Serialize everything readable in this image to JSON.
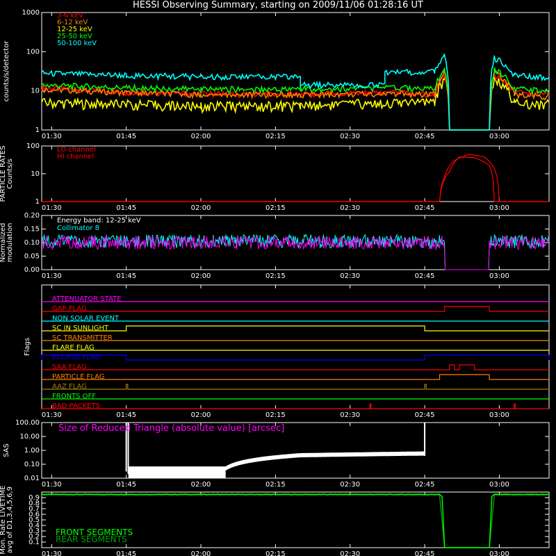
{
  "title": "HESSI Observing Summary, starting on 2009/11/06 01:28:16 UT",
  "time_ticks": [
    "01:30",
    "01:45",
    "02:00",
    "02:15",
    "02:30",
    "02:45",
    "03:00"
  ],
  "chart_data": [
    {
      "type": "line",
      "name": "count-rates",
      "ylabel": "counts/s/detector",
      "yscale": "log",
      "ylim": [
        1,
        1000
      ],
      "yticks": [
        "1",
        "10",
        "100",
        "1000"
      ],
      "series": [
        {
          "name": "3-6 keV",
          "color": "#ff0000",
          "points": [
            [
              "01:28",
              12
            ],
            [
              "01:45",
              9
            ],
            [
              "02:00",
              8.5
            ],
            [
              "02:20",
              8
            ],
            [
              "02:40",
              9
            ],
            [
              "02:47",
              8
            ],
            [
              "02:49",
              25
            ],
            [
              "02:50",
              0
            ],
            [
              "02:58",
              0
            ],
            [
              "02:59",
              25
            ],
            [
              "03:03",
              9
            ],
            [
              "03:10",
              8
            ]
          ]
        },
        {
          "name": "6-12 keV",
          "color": "#ff8000",
          "points": [
            [
              "01:28",
              11
            ],
            [
              "01:45",
              9
            ],
            [
              "02:00",
              8
            ],
            [
              "02:20",
              8
            ],
            [
              "02:40",
              8.5
            ],
            [
              "02:47",
              8
            ],
            [
              "02:49",
              30
            ],
            [
              "02:50",
              0
            ],
            [
              "02:58",
              0
            ],
            [
              "02:59",
              30
            ],
            [
              "03:03",
              8
            ],
            [
              "03:10",
              7
            ]
          ]
        },
        {
          "name": "12-25 keV",
          "color": "#ffff00",
          "points": [
            [
              "01:28",
              5
            ],
            [
              "01:45",
              4.5
            ],
            [
              "02:00",
              4
            ],
            [
              "02:20",
              4.2
            ],
            [
              "02:40",
              5
            ],
            [
              "02:47",
              5
            ],
            [
              "02:49",
              20
            ],
            [
              "02:50",
              0
            ],
            [
              "02:58",
              0
            ],
            [
              "02:59",
              20
            ],
            [
              "03:03",
              5
            ],
            [
              "03:10",
              4.5
            ]
          ]
        },
        {
          "name": "25-50 keV",
          "color": "#00ff00",
          "points": [
            [
              "01:28",
              14
            ],
            [
              "01:45",
              12
            ],
            [
              "02:00",
              11
            ],
            [
              "02:20",
              11
            ],
            [
              "02:40",
              12
            ],
            [
              "02:47",
              11
            ],
            [
              "02:49",
              35
            ],
            [
              "02:50",
              0
            ],
            [
              "02:58",
              0
            ],
            [
              "02:59",
              35
            ],
            [
              "03:03",
              11
            ],
            [
              "03:10",
              10
            ]
          ]
        },
        {
          "name": "50-100 keV",
          "color": "#00ffff",
          "points": [
            [
              "01:28",
              28
            ],
            [
              "01:45",
              25
            ],
            [
              "02:00",
              23
            ],
            [
              "02:20",
              23
            ],
            [
              "02:20",
              14
            ],
            [
              "02:37",
              14
            ],
            [
              "02:37",
              30
            ],
            [
              "02:47",
              30
            ],
            [
              "02:49",
              80
            ],
            [
              "02:50",
              0
            ],
            [
              "02:58",
              0
            ],
            [
              "02:59",
              70
            ],
            [
              "03:03",
              25
            ],
            [
              "03:10",
              22
            ]
          ]
        }
      ]
    },
    {
      "type": "line",
      "name": "particle-rates",
      "ylabel": "PARTICLE RATES Counts/s",
      "yscale": "log",
      "ylim": [
        1,
        100
      ],
      "yticks": [
        "1",
        "10",
        "100"
      ],
      "series": [
        {
          "name": "LO channel",
          "color": "#ff0000",
          "points": [
            [
              "01:28",
              1
            ],
            [
              "02:48",
              1
            ],
            [
              "02:49",
              8
            ],
            [
              "02:51",
              30
            ],
            [
              "02:54",
              50
            ],
            [
              "02:57",
              40
            ],
            [
              "02:59",
              15
            ],
            [
              "03:00",
              1
            ],
            [
              "03:10",
              1
            ]
          ]
        },
        {
          "name": "HI channel",
          "color": "#ff0000",
          "points": [
            [
              "01:28",
              1
            ],
            [
              "02:48",
              1
            ],
            [
              "02:50",
              12
            ],
            [
              "02:52",
              40
            ],
            [
              "02:55",
              38
            ],
            [
              "02:58",
              20
            ],
            [
              "02:59",
              1
            ],
            [
              "03:10",
              1
            ]
          ]
        }
      ]
    },
    {
      "type": "line",
      "name": "modulation",
      "ylabel": "Normalized modulation",
      "ylim": [
        0,
        0.2
      ],
      "yticks": [
        "0.00",
        "0.05",
        "0.10",
        "0.15",
        "0.20"
      ],
      "annotation": "Energy band: 12-25 keV",
      "series": [
        {
          "name": "Collimator 8",
          "color": "#00ffff",
          "mean": 0.105
        },
        {
          "name": "",
          "color": "#ff00ff",
          "mean": 0.1
        }
      ],
      "gap": [
        "02:49",
        "02:58"
      ]
    },
    {
      "type": "line",
      "name": "flags",
      "ylabel": "Flags",
      "flags": [
        {
          "name": "ATTENUATOR STATE",
          "color": "#ff00ff",
          "on": []
        },
        {
          "name": "GAP FLAG",
          "color": "#ff0000",
          "on": [
            [
              "02:49",
              "02:58"
            ]
          ]
        },
        {
          "name": "NON SOLAR EVENT",
          "color": "#00ffff",
          "on": []
        },
        {
          "name": "SC IN SUNLIGHT",
          "color": "#ffff00",
          "on": [
            [
              "01:45",
              "02:45"
            ]
          ]
        },
        {
          "name": "SC TRANSMITTER",
          "color": "#ff8000",
          "on": []
        },
        {
          "name": "FLARE FLAG",
          "color": "#ffff00",
          "on": []
        },
        {
          "name": "ECLIPSE FLAG",
          "color": "#0000ff",
          "on": [
            [
              "01:28",
              "01:45"
            ],
            [
              "02:45",
              "03:10"
            ]
          ]
        },
        {
          "name": "SAA FLAG",
          "color": "#ff0000",
          "on": [
            [
              "02:50",
              "02:51"
            ],
            [
              "02:52",
              "02:55"
            ]
          ]
        },
        {
          "name": "PARTICLE FLAG",
          "color": "#ff8000",
          "on": [
            [
              "02:48",
              "02:58"
            ]
          ]
        },
        {
          "name": "AAZ FLAG",
          "color": "#a08000",
          "on": [
            [
              "01:45",
              "01:45.3"
            ],
            [
              "02:45",
              "02:45.3"
            ]
          ]
        },
        {
          "name": "FRONTS OFF",
          "color": "#00ff00",
          "on": []
        },
        {
          "name": "BAD PACKETS",
          "color": "#ff0000",
          "on": [
            [
              "02:34",
              "02:34.2"
            ],
            [
              "03:03",
              "03:03.2"
            ]
          ]
        }
      ]
    },
    {
      "type": "line",
      "name": "sas",
      "ylabel": "SAS",
      "yscale": "log",
      "ylim": [
        0.01,
        100
      ],
      "yticks": [
        "0.01",
        "0.10",
        "1.00",
        "10.00",
        "100.00"
      ],
      "annotation": "Size of Reduced Triangle (absolute value) [arcsec]",
      "series": [
        {
          "name": "",
          "color": "#ffffff",
          "points": [
            [
              "01:45",
              100
            ],
            [
              "01:45.5",
              0.05
            ],
            [
              "02:05",
              0.05
            ],
            [
              "02:10",
              0.3
            ],
            [
              "02:20",
              0.5
            ],
            [
              "02:45",
              0.6
            ],
            [
              "02:45.2",
              100
            ]
          ]
        }
      ]
    },
    {
      "type": "line",
      "name": "livetime",
      "ylabel": "Mon. Rate LIVETIME avg of D1,3,4,5,6,9",
      "ylim": [
        0,
        1
      ],
      "yticks": [
        "0.1",
        "0.2",
        "0.3",
        "0.4",
        "0.5",
        "0.6",
        "0.7",
        "0.8",
        "0.9"
      ],
      "series": [
        {
          "name": "FRONT SEGMENTS",
          "color": "#00ff00",
          "points": [
            [
              "01:28",
              0.96
            ],
            [
              "02:48",
              0.96
            ],
            [
              "02:48.5",
              0.92
            ],
            [
              "02:49",
              0
            ],
            [
              "02:58",
              0
            ],
            [
              "02:58.5",
              0.92
            ],
            [
              "02:59",
              0.96
            ],
            [
              "03:10",
              0.96
            ]
          ]
        },
        {
          "name": "REAR SEGMENTS",
          "color": "#00a000",
          "points": [
            [
              "01:28",
              0.95
            ],
            [
              "02:48",
              0.95
            ],
            [
              "02:49",
              0
            ],
            [
              "02:58",
              0
            ],
            [
              "02:59",
              0.95
            ],
            [
              "03:10",
              0.95
            ]
          ]
        }
      ]
    }
  ]
}
